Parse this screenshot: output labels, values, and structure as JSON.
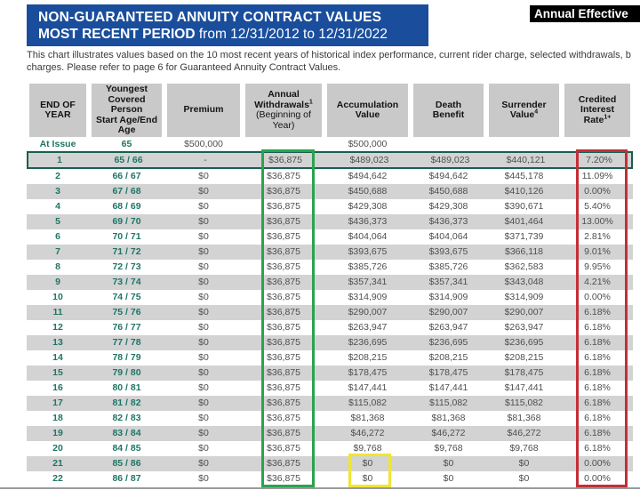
{
  "header": {
    "title_line1": "NON-GUARANTEED ANNUITY CONTRACT VALUES",
    "title_line2_bold": "MOST RECENT PERIOD",
    "title_line2_rest": " from 12/31/2012 to 12/31/2022",
    "corner_badge": "Annual Effective"
  },
  "description": {
    "line1": "This chart illustrates values based on the 10 most recent years of historical index performance, current rider charge, selected withdrawals, b",
    "line2": "charges. Please refer to page 6 for Guaranteed Annuity Contract Values."
  },
  "table": {
    "columns": [
      {
        "bold_lines": [
          "END OF",
          "YEAR"
        ],
        "sup": "",
        "normal_lines": []
      },
      {
        "bold_lines": [
          "Youngest",
          "Covered",
          "Person",
          "Start Age/End",
          "Age"
        ],
        "sup": "",
        "normal_lines": []
      },
      {
        "bold_lines": [
          "Premium"
        ],
        "sup": "",
        "normal_lines": []
      },
      {
        "bold_lines": [
          "Annual",
          "Withdrawals"
        ],
        "sup": "1",
        "normal_lines": [
          "(Beginning of",
          "Year)"
        ]
      },
      {
        "bold_lines": [
          "Accumulation",
          "Value"
        ],
        "sup": "",
        "normal_lines": []
      },
      {
        "bold_lines": [
          "Death",
          "Benefit"
        ],
        "sup": "",
        "normal_lines": []
      },
      {
        "bold_lines": [
          "Surrender",
          "Value"
        ],
        "sup": "4",
        "normal_lines": []
      },
      {
        "bold_lines": [
          "Credited",
          "Interest",
          "Rate"
        ],
        "sup": "1+",
        "normal_lines": []
      }
    ],
    "at_issue": [
      "At Issue",
      "65",
      "$500,000",
      "",
      "$500,000",
      "",
      "",
      ""
    ],
    "rows": [
      [
        "1",
        "65 / 66",
        "-",
        "$36,875",
        "$489,023",
        "$489,023",
        "$440,121",
        "7.20%"
      ],
      [
        "2",
        "66 / 67",
        "$0",
        "$36,875",
        "$494,642",
        "$494,642",
        "$445,178",
        "11.09%"
      ],
      [
        "3",
        "67 / 68",
        "$0",
        "$36,875",
        "$450,688",
        "$450,688",
        "$410,126",
        "0.00%"
      ],
      [
        "4",
        "68 / 69",
        "$0",
        "$36,875",
        "$429,308",
        "$429,308",
        "$390,671",
        "5.40%"
      ],
      [
        "5",
        "69 / 70",
        "$0",
        "$36,875",
        "$436,373",
        "$436,373",
        "$401,464",
        "13.00%"
      ],
      [
        "6",
        "70 / 71",
        "$0",
        "$36,875",
        "$404,064",
        "$404,064",
        "$371,739",
        "2.81%"
      ],
      [
        "7",
        "71 / 72",
        "$0",
        "$36,875",
        "$393,675",
        "$393,675",
        "$366,118",
        "9.01%"
      ],
      [
        "8",
        "72 / 73",
        "$0",
        "$36,875",
        "$385,726",
        "$385,726",
        "$362,583",
        "9.95%"
      ],
      [
        "9",
        "73 / 74",
        "$0",
        "$36,875",
        "$357,341",
        "$357,341",
        "$343,048",
        "4.21%"
      ],
      [
        "10",
        "74 / 75",
        "$0",
        "$36,875",
        "$314,909",
        "$314,909",
        "$314,909",
        "0.00%"
      ],
      [
        "11",
        "75 / 76",
        "$0",
        "$36,875",
        "$290,007",
        "$290,007",
        "$290,007",
        "6.18%"
      ],
      [
        "12",
        "76 / 77",
        "$0",
        "$36,875",
        "$263,947",
        "$263,947",
        "$263,947",
        "6.18%"
      ],
      [
        "13",
        "77 / 78",
        "$0",
        "$36,875",
        "$236,695",
        "$236,695",
        "$236,695",
        "6.18%"
      ],
      [
        "14",
        "78 / 79",
        "$0",
        "$36,875",
        "$208,215",
        "$208,215",
        "$208,215",
        "6.18%"
      ],
      [
        "15",
        "79 / 80",
        "$0",
        "$36,875",
        "$178,475",
        "$178,475",
        "$178,475",
        "6.18%"
      ],
      [
        "16",
        "80 / 81",
        "$0",
        "$36,875",
        "$147,441",
        "$147,441",
        "$147,441",
        "6.18%"
      ],
      [
        "17",
        "81 / 82",
        "$0",
        "$36,875",
        "$115,082",
        "$115,082",
        "$115,082",
        "6.18%"
      ],
      [
        "18",
        "82 / 83",
        "$0",
        "$36,875",
        "$81,368",
        "$81,368",
        "$81,368",
        "6.18%"
      ],
      [
        "19",
        "83 / 84",
        "$0",
        "$36,875",
        "$46,272",
        "$46,272",
        "$46,272",
        "6.18%"
      ],
      [
        "20",
        "84 / 85",
        "$0",
        "$36,875",
        "$9,768",
        "$9,768",
        "$9,768",
        "6.18%"
      ],
      [
        "21",
        "85 / 86",
        "$0",
        "$36,875",
        "$0",
        "$0",
        "$0",
        "0.00%"
      ],
      [
        "22",
        "86 / 87",
        "$0",
        "$36,875",
        "$0",
        "$0",
        "$0",
        "0.00%"
      ]
    ]
  },
  "annotations": {
    "withdrawals_box_color": "#2aa34f",
    "credited_rate_box_color": "#c13038",
    "zero_accumulation_box_color": "#efe532",
    "highlight_row_border_color": "#16604f",
    "banner_blue": "#1a4e9c",
    "teal_text": "#1e7565"
  }
}
